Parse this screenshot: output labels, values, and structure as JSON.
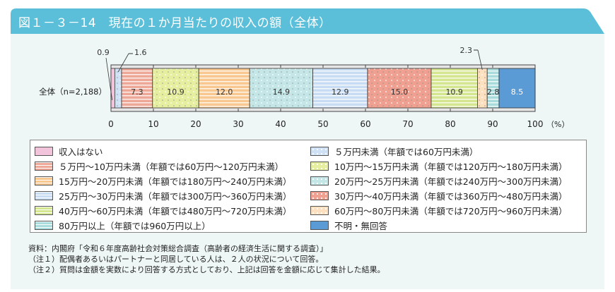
{
  "title": "図１－３－14　現在の１か月当たりの収入の額（全体）",
  "colors": {
    "title_bar": "#5bbfd9",
    "panel": "#eef6f6"
  },
  "chart_data": {
    "type": "bar",
    "orientation": "horizontal-stacked",
    "categories": [
      "全体（n=2,188）"
    ],
    "xlim": [
      0,
      100
    ],
    "xticks": [
      0,
      10,
      20,
      30,
      40,
      50,
      60,
      70,
      80,
      90,
      100
    ],
    "xunit": "（%）",
    "legend_position": "bottom",
    "series": [
      {
        "name": "収入はない",
        "value": 0.9,
        "label": "0.9",
        "color": "#f2c4dc",
        "pattern": "solid"
      },
      {
        "name": "５万円未満（年額では60万円未満）",
        "value": 1.6,
        "label": "1.6",
        "color": "#cfe2f5",
        "pattern": "dots"
      },
      {
        "name": "５万円～10万円未満（年額では60万円～120万円未満）",
        "value": 7.3,
        "label": "7.3",
        "color": "#eea898",
        "pattern": "stripes"
      },
      {
        "name": "10万円～15万円未満（年額では120万円～180万円未満）",
        "value": 10.9,
        "label": "10.9",
        "color": "#e6eea0",
        "pattern": "dots"
      },
      {
        "name": "15万円～20万円未満（年額では180万円～240万円未満）",
        "value": 12.0,
        "label": "12.0",
        "color": "#f8c890",
        "pattern": "stripes"
      },
      {
        "name": "20万円～25万円未満（年額では240万円～300万円未満）",
        "value": 14.9,
        "label": "14.9",
        "color": "#c4e6e6",
        "pattern": "dots"
      },
      {
        "name": "25万円～30万円未満（年額では300万円～360万円未満）",
        "value": 12.9,
        "label": "12.9",
        "color": "#c8dcf4",
        "pattern": "stripes"
      },
      {
        "name": "30万円～40万円未満（年額では360万円～480万円未満）",
        "value": 15.0,
        "label": "15.0",
        "color": "#f0a090",
        "pattern": "dots"
      },
      {
        "name": "40万円～60万円未満（年額では480万円～720万円未満）",
        "value": 10.9,
        "label": "10.9",
        "color": "#d4e690",
        "pattern": "stripes"
      },
      {
        "name": "60万円～80万円未満（年額では720万円～960万円未満）",
        "value": 2.3,
        "label": "2.3",
        "color": "#fce0c0",
        "pattern": "dots"
      },
      {
        "name": "80万円以上（年額では960万円以上）",
        "value": 2.8,
        "label": "2.8",
        "color": "#a8dcdc",
        "pattern": "stripes"
      },
      {
        "name": "不明・無回答",
        "value": 8.5,
        "label": "8.5",
        "color": "#5b9bd5",
        "pattern": "solid"
      }
    ]
  },
  "notes": [
    "資料：内閣府「令和６年度高齢社会対策総合調査（高齢者の経済生活に関する調査）」",
    "（注１）配偶者あるいはパートナーと同居している人は、２人の状況について回答。",
    "（注２）質問は金額を実数により回答する方式としており、上記は回答を金額に応じて集計した結果。"
  ]
}
